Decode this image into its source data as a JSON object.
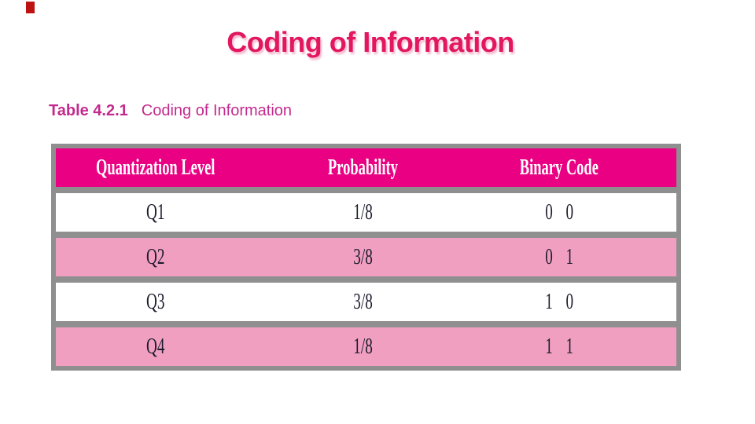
{
  "slide": {
    "title": "Coding of Information",
    "title_color": "#e2175f",
    "background_color": "#ffffff",
    "decoration": {
      "name": "red-corner-mark",
      "color": "#bd1212"
    }
  },
  "caption": {
    "label": "Table 4.2.1",
    "text": "Coding of Information",
    "color": "#c32a8d"
  },
  "table": {
    "header_bg": "#ea0082",
    "header_text_color": "#ffffff",
    "row_pink_color": "#f19fc1",
    "row_white_color": "#ffffff",
    "frame_color": "#8f8f8f",
    "body_text_color": "#1c1c2e",
    "columns": [
      "Quantization Level",
      "Probability",
      "Binary Code"
    ],
    "rows": [
      {
        "level": "Q1",
        "probability": "1/8",
        "code": "0 0"
      },
      {
        "level": "Q2",
        "probability": "3/8",
        "code": "0 1"
      },
      {
        "level": "Q3",
        "probability": "3/8",
        "code": "1 0"
      },
      {
        "level": "Q4",
        "probability": "1/8",
        "code": "1 1"
      }
    ]
  }
}
